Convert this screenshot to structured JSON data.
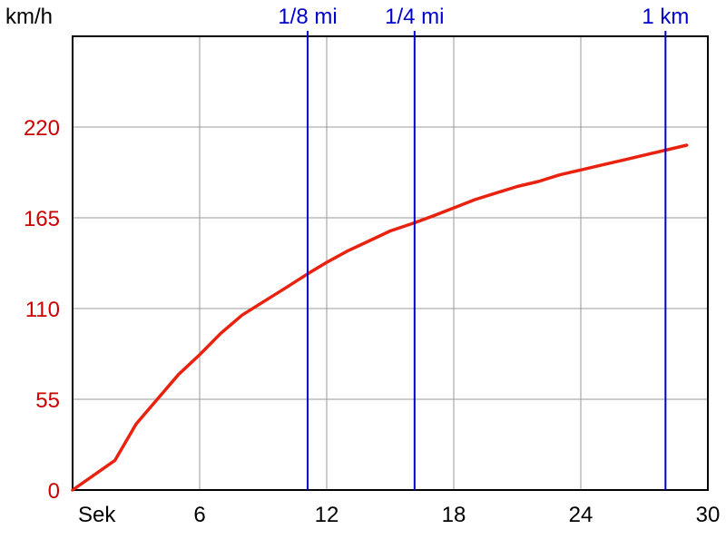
{
  "chart_data": {
    "type": "line",
    "ylabel": "km/h",
    "xlabel": "Sek",
    "xlim": [
      0,
      30
    ],
    "ylim": [
      0,
      275
    ],
    "x_ticks": [
      6,
      12,
      18,
      24,
      30
    ],
    "y_ticks": [
      0,
      55,
      110,
      165,
      220
    ],
    "x_tick_labels": [
      "6",
      "12",
      "18",
      "24",
      "30"
    ],
    "y_tick_labels": [
      "0",
      "55",
      "110",
      "165",
      "220"
    ],
    "grid": true,
    "markers": [
      {
        "label": "1/8 mi",
        "x": 11.1
      },
      {
        "label": "1/4 mi",
        "x": 16.15
      },
      {
        "label": "1 km",
        "x": 28.0
      }
    ],
    "series": [
      {
        "x": [
          0,
          2.0,
          3.0,
          4.0,
          5.0,
          6.0,
          7.0,
          8.0,
          9.0,
          10.0,
          11.1,
          12.0,
          13.0,
          14.0,
          15.0,
          16.15,
          17.0,
          18.0,
          19.0,
          20.0,
          21.0,
          22.0,
          23.0,
          24.0,
          25.0,
          26.0,
          27.0,
          28.0,
          29.0
        ],
        "values": [
          0,
          18,
          40,
          55,
          70,
          82,
          95,
          106,
          114,
          122,
          131,
          138,
          145,
          151,
          157,
          162,
          166,
          171,
          176,
          180,
          184,
          187,
          191,
          194,
          197,
          200,
          203,
          206,
          209
        ]
      }
    ],
    "colors": {
      "line": "#e8220f",
      "markers": "#0000cc",
      "y_axis_text": "#cc0000",
      "x_axis_text": "#000000",
      "grid": "#999999",
      "frame": "#000000"
    }
  }
}
